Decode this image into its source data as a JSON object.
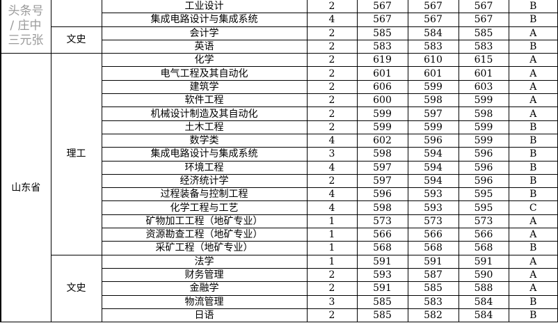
{
  "groups": [
    {
      "province": "",
      "category": "",
      "rows": [
        [
          "工业设计",
          "2",
          "567",
          "567",
          "567",
          "B"
        ],
        [
          "集成电路设计与集成系统",
          "4",
          "567",
          "567",
          "567",
          "B"
        ]
      ]
    },
    {
      "province": "",
      "category": "文史",
      "rows": [
        [
          "会计学",
          "2",
          "585",
          "584",
          "585",
          "A"
        ],
        [
          "英语",
          "2",
          "583",
          "583",
          "583",
          "B"
        ]
      ]
    },
    {
      "province": "山东省",
      "category": "理工",
      "rows": [
        [
          "化学",
          "2",
          "619",
          "610",
          "615",
          "A"
        ],
        [
          "电气工程及其自动化",
          "2",
          "601",
          "601",
          "601",
          "A"
        ],
        [
          "建筑学",
          "2",
          "606",
          "599",
          "603",
          "A"
        ],
        [
          "软件工程",
          "2",
          "600",
          "598",
          "599",
          "A"
        ],
        [
          "机械设计制造及其自动化",
          "2",
          "599",
          "597",
          "598",
          "A"
        ],
        [
          "土木工程",
          "2",
          "599",
          "599",
          "599",
          "B"
        ],
        [
          "数学类",
          "4",
          "602",
          "596",
          "599",
          "B"
        ],
        [
          "集成电路设计与集成系统",
          "3",
          "598",
          "594",
          "596",
          "B"
        ],
        [
          "环境工程",
          "4",
          "597",
          "594",
          "596",
          "B"
        ],
        [
          "经济统计学",
          "2",
          "597",
          "594",
          "596",
          "B"
        ],
        [
          "过程装备与控制工程",
          "4",
          "596",
          "593",
          "595",
          "B"
        ],
        [
          "化学工程与工艺",
          "4",
          "598",
          "593",
          "595",
          "C"
        ],
        [
          "矿物加工工程（地矿专业）",
          "1",
          "573",
          "573",
          "573",
          "A"
        ],
        [
          "资源勘查工程（地矿专业）",
          "1",
          "566",
          "566",
          "566",
          "A"
        ],
        [
          "采矿工程（地矿专业）",
          "1",
          "568",
          "568",
          "568",
          "B"
        ]
      ]
    },
    {
      "province": "山东省",
      "category": "文史",
      "rows": [
        [
          "法学",
          "1",
          "591",
          "591",
          "591",
          "A"
        ],
        [
          "财务管理",
          "2",
          "593",
          "587",
          "590",
          "A"
        ],
        [
          "金融学",
          "2",
          "591",
          "585",
          "588",
          "A"
        ],
        [
          "物流管理",
          "3",
          "585",
          "583",
          "584",
          "B"
        ],
        [
          "日语",
          "2",
          "585",
          "582",
          "584",
          "B"
        ]
      ]
    }
  ],
  "watermark": "头条号 / 庄中三元张"
}
